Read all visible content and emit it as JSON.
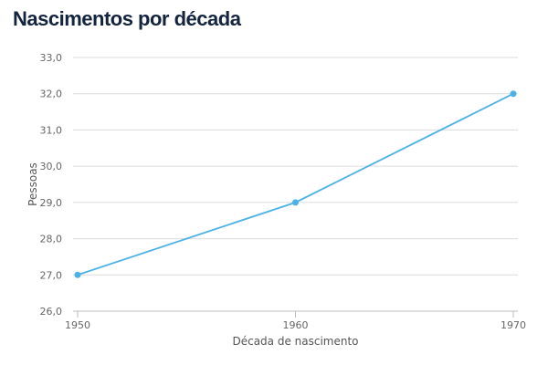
{
  "chart_data": {
    "type": "line",
    "title": "Nascimentos por década",
    "xlabel": "Década de nascimento",
    "ylabel": "Pessoas",
    "x": [
      1950,
      1960,
      1970
    ],
    "series": [
      {
        "values": [
          27.0,
          29.0,
          32.0
        ]
      }
    ],
    "ylim": [
      26.0,
      33.0
    ],
    "yticks": [
      "26,0",
      "27,0",
      "28,0",
      "29,0",
      "30,0",
      "31,0",
      "32,0",
      "33,0"
    ],
    "xticks": [
      "1950",
      "1960",
      "1970"
    ],
    "grid": true,
    "legend": "none"
  },
  "colors": {
    "line": "#4cb2e6",
    "marker": "#4cb2e6",
    "grid": "#dcdcdc",
    "axis": "#bdbdbd",
    "tick_text": "#666666",
    "title": "#13243f"
  }
}
